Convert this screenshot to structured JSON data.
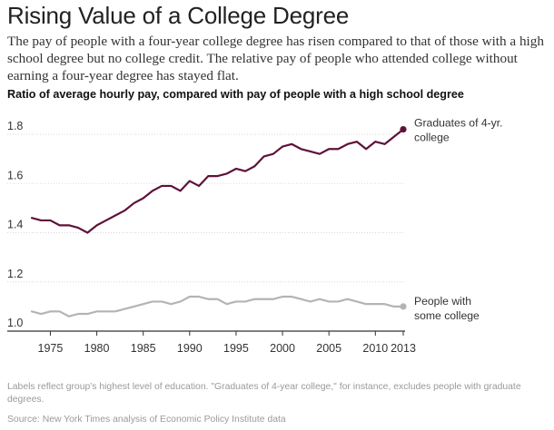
{
  "header": {
    "title": "Rising Value of a College Degree",
    "subtitle": "The pay of people with a four-year college degree has risen compared to that of those with a high school degree but no college credit. The relative pay of people who attended college without earning a four-year degree has stayed flat."
  },
  "footer": {
    "note": "Labels reflect group's highest level of education. \"Graduates of 4-year college,\" for instance, excludes people with graduate degrees.",
    "source": "Source: New York Times analysis of Economic Policy Institute data"
  },
  "chart_data": {
    "type": "line",
    "title": "Ratio of average hourly pay, compared with pay of people with a high school degree",
    "xlabel": "",
    "ylabel": "",
    "xlim": [
      1973,
      2013
    ],
    "ylim": [
      1.0,
      1.8
    ],
    "x_ticks": [
      1975,
      1980,
      1985,
      1990,
      1995,
      2000,
      2005,
      2010,
      2013
    ],
    "y_ticks": [
      "1.0",
      "1.2",
      "1.4",
      "1.6",
      "1.8"
    ],
    "grid": "horizontal",
    "x": [
      1973,
      1974,
      1975,
      1976,
      1977,
      1978,
      1979,
      1980,
      1981,
      1982,
      1983,
      1984,
      1985,
      1986,
      1987,
      1988,
      1989,
      1990,
      1991,
      1992,
      1993,
      1994,
      1995,
      1996,
      1997,
      1998,
      1999,
      2000,
      2001,
      2002,
      2003,
      2004,
      2005,
      2006,
      2007,
      2008,
      2009,
      2010,
      2011,
      2012,
      2013
    ],
    "series": [
      {
        "name": "Graduates of 4-yr. college",
        "label_lines": [
          "Graduates of 4-yr.",
          "college"
        ],
        "color": "#5e1239",
        "end_marker": true,
        "values": [
          1.46,
          1.45,
          1.45,
          1.43,
          1.43,
          1.42,
          1.4,
          1.43,
          1.45,
          1.47,
          1.49,
          1.52,
          1.54,
          1.57,
          1.59,
          1.59,
          1.57,
          1.61,
          1.59,
          1.63,
          1.63,
          1.64,
          1.66,
          1.65,
          1.67,
          1.71,
          1.72,
          1.75,
          1.76,
          1.74,
          1.73,
          1.72,
          1.74,
          1.74,
          1.76,
          1.77,
          1.74,
          1.77,
          1.76,
          1.79,
          1.82
        ]
      },
      {
        "name": "People with some college",
        "label_lines": [
          "People with",
          "some college"
        ],
        "color": "#b4b4b4",
        "end_marker": true,
        "values": [
          1.08,
          1.07,
          1.08,
          1.08,
          1.06,
          1.07,
          1.07,
          1.08,
          1.08,
          1.08,
          1.09,
          1.1,
          1.11,
          1.12,
          1.12,
          1.11,
          1.12,
          1.14,
          1.14,
          1.13,
          1.13,
          1.11,
          1.12,
          1.12,
          1.13,
          1.13,
          1.13,
          1.14,
          1.14,
          1.13,
          1.12,
          1.13,
          1.12,
          1.12,
          1.13,
          1.12,
          1.11,
          1.11,
          1.11,
          1.1,
          1.1
        ]
      }
    ]
  }
}
